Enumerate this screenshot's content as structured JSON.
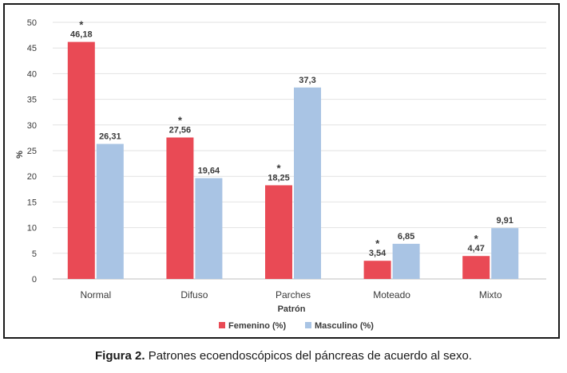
{
  "chart_data": {
    "type": "bar",
    "categories": [
      "Normal",
      "Difuso",
      "Parches",
      "Moteado",
      "Mixto"
    ],
    "series": [
      {
        "name": "Femenino (%)",
        "color": "#e94a55",
        "values": [
          46.18,
          27.56,
          18.25,
          3.54,
          4.47
        ],
        "labels": [
          "46,18",
          "27,56",
          "18,25",
          "3,54",
          "4,47"
        ],
        "asterisk": [
          true,
          true,
          true,
          true,
          true
        ]
      },
      {
        "name": "Masculino (%)",
        "color": "#a9c4e4",
        "values": [
          26.31,
          19.64,
          37.3,
          6.85,
          9.91
        ],
        "labels": [
          "26,31",
          "19,64",
          "37,3",
          "6,85",
          "9,91"
        ],
        "asterisk": [
          false,
          false,
          false,
          false,
          false
        ]
      }
    ],
    "xlabel": "Patrón",
    "ylabel": "%",
    "ylim": [
      0,
      50
    ],
    "yticks": [
      0,
      5,
      10,
      15,
      20,
      25,
      30,
      35,
      40,
      45,
      50
    ],
    "grid": true,
    "legend": "bottom",
    "asterisk_symbol": "*"
  },
  "caption": {
    "label": "Figura 2.",
    "text": " Patrones ecoendoscópicos del páncreas de acuerdo al sexo."
  }
}
